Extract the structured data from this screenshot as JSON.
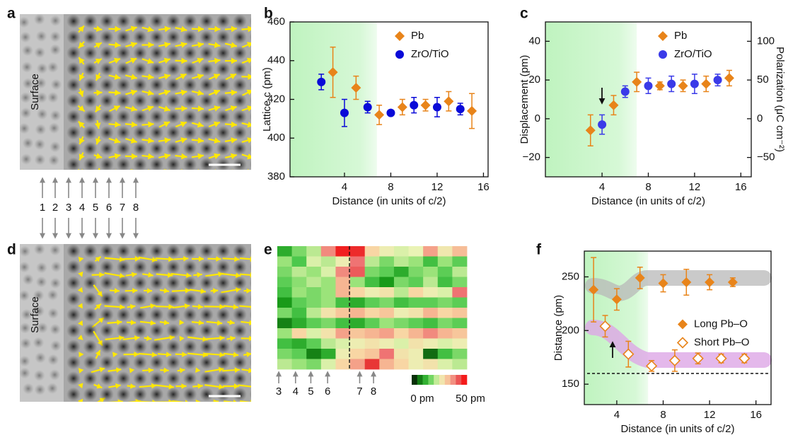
{
  "panels": [
    {
      "panel_label": "a",
      "label": "Surface",
      "markers": [
        1,
        2,
        3,
        4,
        5,
        6,
        7,
        8
      ]
    },
    {
      "panel_label": "d",
      "label": "Surface"
    }
  ],
  "chart_data": [
    {
      "panel_label": "b",
      "type": "errorbar",
      "xlabel": "Distance (in units of c/2)",
      "ylabel": "Lattice c (pm)",
      "xlim": [
        -0.7,
        16.4
      ],
      "ylim": [
        380,
        460
      ],
      "xticks": [
        4,
        8,
        12,
        16
      ],
      "yticks": [
        380,
        400,
        420,
        440,
        460
      ],
      "highlight": [
        -0.7,
        6.8
      ],
      "legend": "upper right",
      "series": [
        {
          "name": "Pb",
          "color": "#e8841a",
          "marker": "diamond",
          "x": [
            3,
            5,
            7,
            9,
            11,
            13,
            15
          ],
          "values": [
            434,
            426,
            412,
            416,
            417,
            419,
            414
          ],
          "errors": [
            13,
            6,
            5,
            4,
            3,
            5,
            9
          ]
        },
        {
          "name": "ZrO/TiO",
          "color": "#0a0ad8",
          "marker": "circle",
          "x": [
            2,
            4,
            6,
            8,
            10,
            12,
            14
          ],
          "values": [
            429,
            413,
            416,
            413,
            417,
            416,
            415
          ],
          "errors": [
            4,
            7,
            3,
            1,
            4,
            5,
            3
          ]
        }
      ]
    },
    {
      "panel_label": "c",
      "type": "errorbar",
      "xlabel": "Distance (in units of c/2)",
      "ylabel": "Displacement (pm)",
      "y2label": "Polarization (μC cm⁻²)",
      "xlim": [
        -0.9,
        16.9
      ],
      "ylim": [
        -30,
        50
      ],
      "y2lim": [
        -75,
        125
      ],
      "xticks": [
        4,
        8,
        12,
        16
      ],
      "yticks": [
        {
          "value": -20,
          "label": "−20"
        },
        0,
        20,
        40
      ],
      "y2ticks": [
        {
          "value": -50,
          "label": "−50"
        },
        0,
        50,
        100
      ],
      "highlight": [
        -0.9,
        7
      ],
      "legend": "upper right",
      "series": [
        {
          "name": "Pb",
          "color": "#e8841a",
          "marker": "diamond",
          "x": [
            3,
            5,
            7,
            9,
            11,
            13,
            15
          ],
          "values": [
            -6,
            7,
            19,
            17,
            17,
            18,
            21
          ],
          "errors": [
            8,
            5,
            5,
            2,
            3,
            4,
            4
          ]
        },
        {
          "name": "ZrO/TiO",
          "color": "#3a3ae8",
          "marker": "circle",
          "x": [
            4,
            6,
            8,
            10,
            12,
            14
          ],
          "values": [
            -3,
            14,
            17,
            18,
            18,
            20
          ],
          "errors": [
            5,
            3,
            4,
            4,
            5,
            3
          ]
        }
      ]
    },
    {
      "panel_label": "e",
      "type": "heatmap",
      "zlim": [
        0,
        50
      ],
      "colorbar_ticks": [
        {
          "value": 0,
          "label": "0 pm"
        },
        {
          "value": 50,
          "label": "50 pm"
        }
      ],
      "markers": [
        3,
        4,
        5,
        6,
        7,
        8
      ],
      "values": [
        [
          12,
          18,
          22,
          38,
          47,
          46,
          30,
          26,
          24,
          25,
          36,
          27,
          33
        ],
        [
          20,
          15,
          24,
          22,
          26,
          40,
          22,
          18,
          22,
          20,
          14,
          20,
          16
        ],
        [
          18,
          22,
          20,
          24,
          38,
          42,
          18,
          16,
          12,
          18,
          20,
          16,
          22
        ],
        [
          16,
          19,
          22,
          20,
          34,
          20,
          14,
          10,
          18,
          16,
          22,
          14,
          18
        ],
        [
          14,
          20,
          18,
          20,
          34,
          30,
          26,
          28,
          22,
          30,
          26,
          24,
          40
        ],
        [
          10,
          16,
          18,
          20,
          14,
          12,
          16,
          18,
          14,
          16,
          16,
          18,
          16
        ],
        [
          18,
          14,
          22,
          28,
          32,
          34,
          30,
          32,
          26,
          28,
          34,
          30,
          32
        ],
        [
          8,
          12,
          16,
          18,
          14,
          12,
          16,
          20,
          18,
          16,
          14,
          18,
          16
        ],
        [
          20,
          30,
          24,
          28,
          36,
          32,
          34,
          36,
          30,
          34,
          38,
          34,
          32
        ],
        [
          14,
          12,
          16,
          22,
          24,
          26,
          28,
          26,
          24,
          28,
          26,
          24,
          26
        ],
        [
          18,
          16,
          8,
          12,
          26,
          30,
          32,
          40,
          28,
          26,
          6,
          14,
          18
        ],
        [
          22,
          20,
          18,
          24,
          30,
          36,
          45,
          34,
          30,
          26,
          28,
          24,
          22
        ]
      ]
    },
    {
      "panel_label": "f",
      "type": "errorbar",
      "xlabel": "Distance (in units of c/2)",
      "ylabel": "Distance (pm)",
      "xlim": [
        1.2,
        17.3
      ],
      "ylim": [
        131,
        274
      ],
      "xticks": [
        4,
        8,
        12,
        16
      ],
      "yticks": [
        150,
        200,
        250
      ],
      "highlight": [
        1.2,
        6.7
      ],
      "reference_line": 160,
      "legend": "center right",
      "series": [
        {
          "name": "Long Pb–O",
          "color": "#e8841a",
          "marker": "diamond",
          "x": [
            2,
            4,
            6,
            8,
            10,
            12,
            14
          ],
          "values": [
            238,
            229,
            249,
            244,
            245,
            245,
            245
          ],
          "errors": [
            30,
            10,
            10,
            8,
            12,
            7,
            4
          ]
        },
        {
          "name": "Short Pb–O",
          "color": "#e8841a",
          "marker": "diamond-open",
          "x": [
            3,
            5,
            7,
            9,
            11,
            13,
            15
          ],
          "values": [
            204,
            178,
            167,
            172,
            174,
            174,
            174
          ],
          "errors": [
            10,
            12,
            5,
            10,
            5,
            4,
            4
          ]
        }
      ]
    }
  ]
}
